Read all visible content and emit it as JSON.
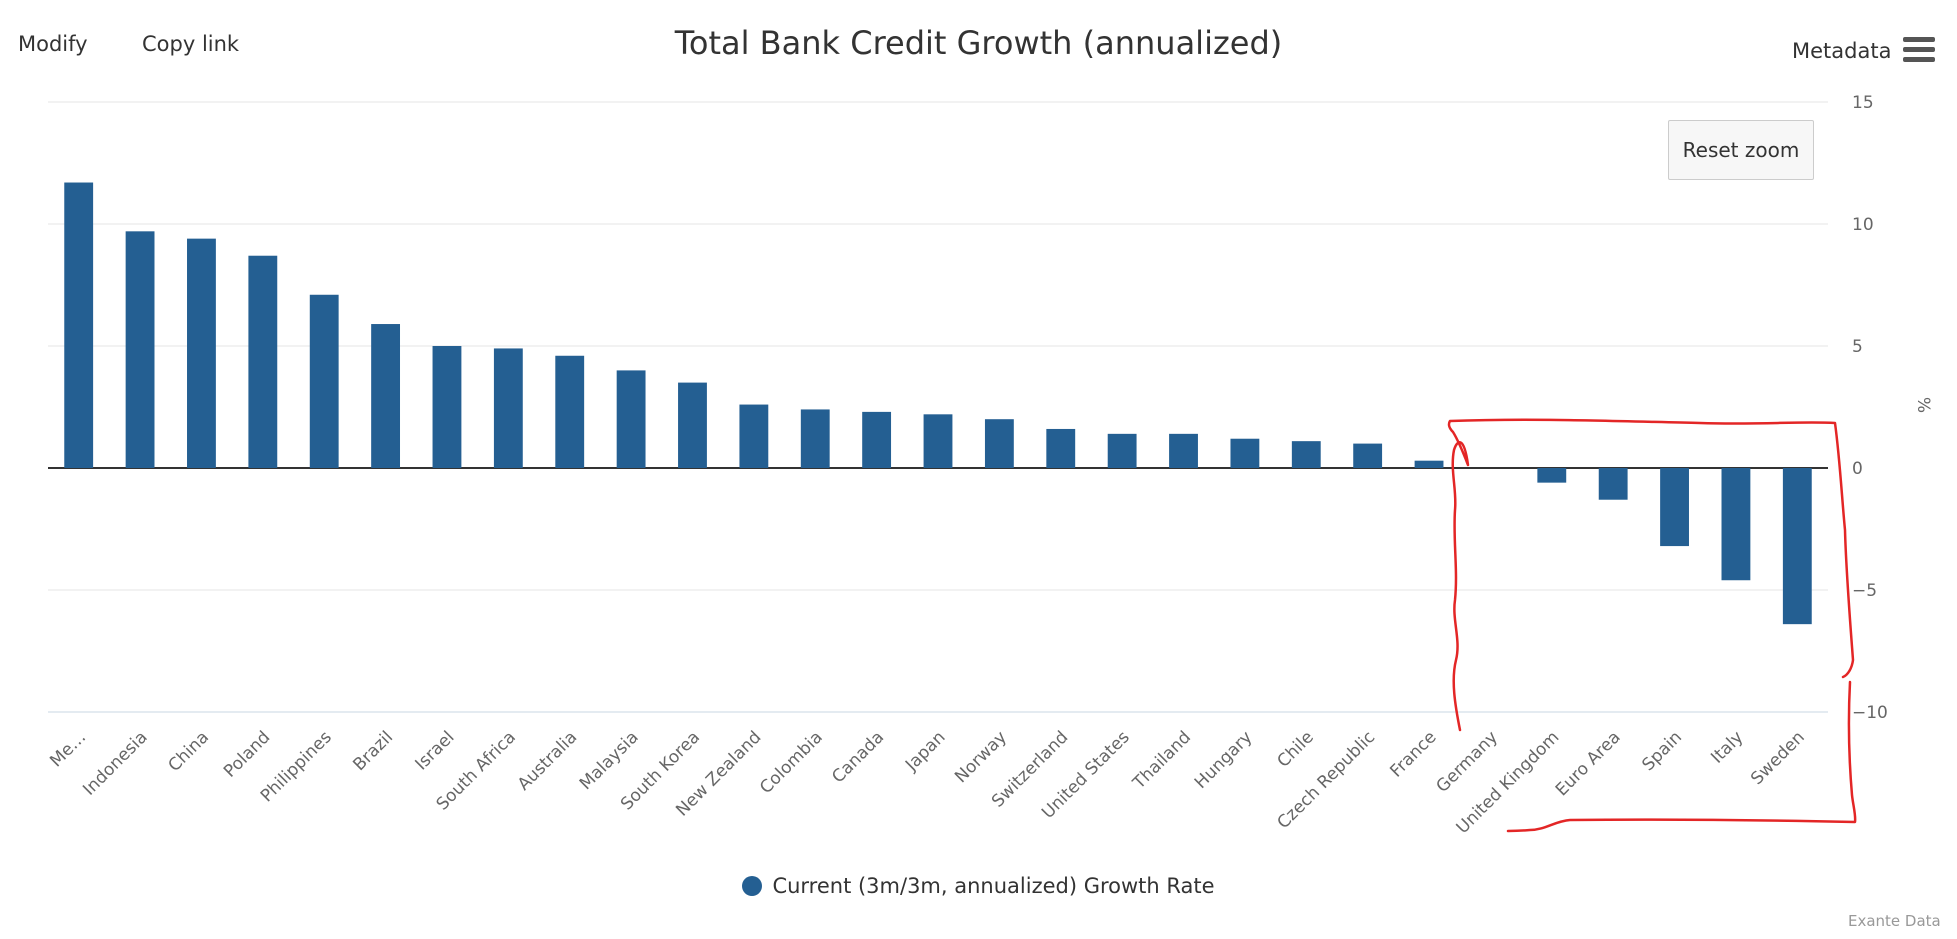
{
  "toolbar": {
    "modify_label": "Modify",
    "copy_link_label": "Copy link",
    "metadata_label": "Metadata",
    "menu_icon": "hamburger-menu-icon",
    "reset_zoom_label": "Reset zoom"
  },
  "credits": "Exante Data",
  "colors": {
    "bar": "#245f92",
    "annotation": "#e32626",
    "grid": "#e6e6e6",
    "zero_line": "#333333"
  },
  "chart_data": {
    "type": "bar",
    "title": "Total Bank Credit Growth (annualized)",
    "xlabel": "",
    "ylabel": "%",
    "ylim": [
      -10,
      15
    ],
    "yticks": [
      15,
      10,
      5,
      0,
      -5,
      -10
    ],
    "ytick_labels": [
      "15",
      "10",
      "5",
      "0",
      "−5",
      "−10"
    ],
    "y_axis_side": "right",
    "grid": true,
    "legend_position": "bottom-center",
    "categories": [
      "Me…",
      "Indonesia",
      "China",
      "Poland",
      "Philippines",
      "Brazil",
      "Israel",
      "South Africa",
      "Australia",
      "Malaysia",
      "South Korea",
      "New Zealand",
      "Colombia",
      "Canada",
      "Japan",
      "Norway",
      "Switzerland",
      "United States",
      "Thailand",
      "Hungary",
      "Chile",
      "Czech Republic",
      "France",
      "Germany",
      "United Kingdom",
      "Euro Area",
      "Spain",
      "Italy",
      "Sweden"
    ],
    "series": [
      {
        "name": "Current (3m/3m, annualized) Growth Rate",
        "values": [
          11.7,
          9.7,
          9.4,
          8.7,
          7.1,
          5.9,
          5.0,
          4.9,
          4.6,
          4.0,
          3.5,
          2.6,
          2.4,
          2.3,
          2.2,
          2.0,
          1.6,
          1.4,
          1.4,
          1.2,
          1.1,
          1.0,
          0.3,
          0.0,
          -0.6,
          -1.3,
          -3.2,
          -4.6,
          -6.4
        ]
      }
    ],
    "annotations": [
      {
        "type": "hand-drawn-outline",
        "covers": [
          "Germany",
          "United Kingdom",
          "Euro Area",
          "Spain",
          "Italy",
          "Sweden"
        ]
      }
    ]
  }
}
